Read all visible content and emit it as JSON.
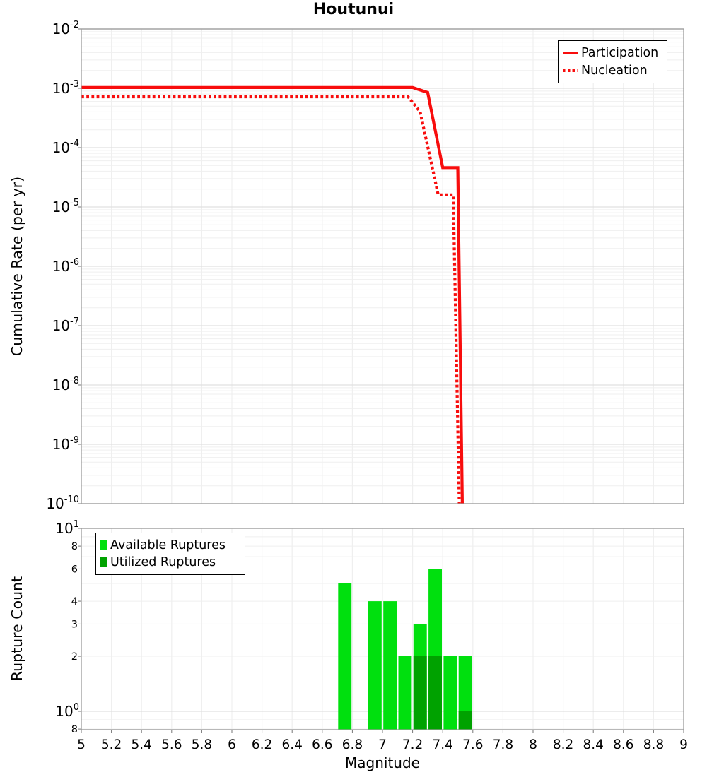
{
  "title": "Houtunui",
  "x_axis": {
    "label": "Magnitude",
    "min": 5,
    "max": 9,
    "tick_values": [
      5,
      5.2,
      5.4,
      5.6,
      5.8,
      6,
      6.2,
      6.4,
      6.6,
      6.8,
      7,
      7.2,
      7.4,
      7.6,
      7.8,
      8,
      8.2,
      8.4,
      8.6,
      8.8,
      9
    ],
    "tick_labels": [
      "5",
      "5.2",
      "5.4",
      "5.6",
      "5.8",
      "6",
      "6.2",
      "6.4",
      "6.6",
      "6.8",
      "7",
      "7.2",
      "7.4",
      "7.6",
      "7.8",
      "8",
      "8.2",
      "8.4",
      "8.6",
      "8.8",
      "9"
    ]
  },
  "colors": {
    "line_red": "#f80d0d",
    "available_green": "#00e00e",
    "utilized_green": "#00a200",
    "grid_minor": "#efefef",
    "grid_major": "#e0e0e0",
    "panel_border": "#9a9a9a"
  },
  "chart_data": [
    {
      "type": "line",
      "panel": "top",
      "title": "Houtunui",
      "ylabel": "Cumulative Rate (per yr)",
      "yscale": "log",
      "ylim": [
        1e-10,
        0.01
      ],
      "ytick_values": [
        0.01,
        0.001,
        0.0001,
        1e-05,
        1e-06,
        1e-07,
        1e-08,
        1e-09,
        1e-10
      ],
      "ytick_labels": [
        "10^-2",
        "10^-3",
        "10^-4",
        "10^-5",
        "10^-6",
        "10^-7",
        "10^-8",
        "10^-9",
        "10^-10"
      ],
      "legend_position": "top-right",
      "series": [
        {
          "name": "Participation",
          "line_style": "solid",
          "color": "#f80d0d",
          "points": [
            [
              5.0,
              0.00103
            ],
            [
              7.2,
              0.00103
            ],
            [
              7.3,
              0.00085
            ],
            [
              7.4,
              4.6e-05
            ],
            [
              7.5,
              4.6e-05
            ],
            [
              7.53,
              1e-10
            ]
          ]
        },
        {
          "name": "Nucleation",
          "line_style": "dotted",
          "color": "#f80d0d",
          "points": [
            [
              5.0,
              0.00072
            ],
            [
              7.17,
              0.00072
            ],
            [
              7.25,
              0.0004
            ],
            [
              7.37,
              1.6e-05
            ],
            [
              7.47,
              1.6e-05
            ],
            [
              7.51,
              1e-10
            ]
          ]
        }
      ]
    },
    {
      "type": "bar",
      "panel": "bottom",
      "ylabel": "Rupture Count",
      "yscale": "log",
      "ylim": [
        0.78,
        10
      ],
      "ytick_values": [
        10,
        8,
        6,
        4,
        3,
        2,
        1,
        0.8
      ],
      "ytick_labels": [
        "10^1",
        "8",
        "6",
        "4",
        "3",
        "2",
        "10^0",
        "8"
      ],
      "legend_position": "top-left",
      "bin_width": 0.1,
      "series": [
        {
          "name": "Available Ruptures",
          "color": "#00e00e",
          "bins": [
            [
              6.7,
              5
            ],
            [
              6.9,
              4
            ],
            [
              7.0,
              4
            ],
            [
              7.1,
              2
            ],
            [
              7.2,
              3
            ],
            [
              7.3,
              6
            ],
            [
              7.4,
              2
            ],
            [
              7.5,
              2
            ]
          ]
        },
        {
          "name": "Utilized Ruptures",
          "color": "#00a200",
          "bins": [
            [
              7.2,
              2
            ],
            [
              7.3,
              2
            ],
            [
              7.5,
              1
            ]
          ]
        }
      ]
    }
  ]
}
